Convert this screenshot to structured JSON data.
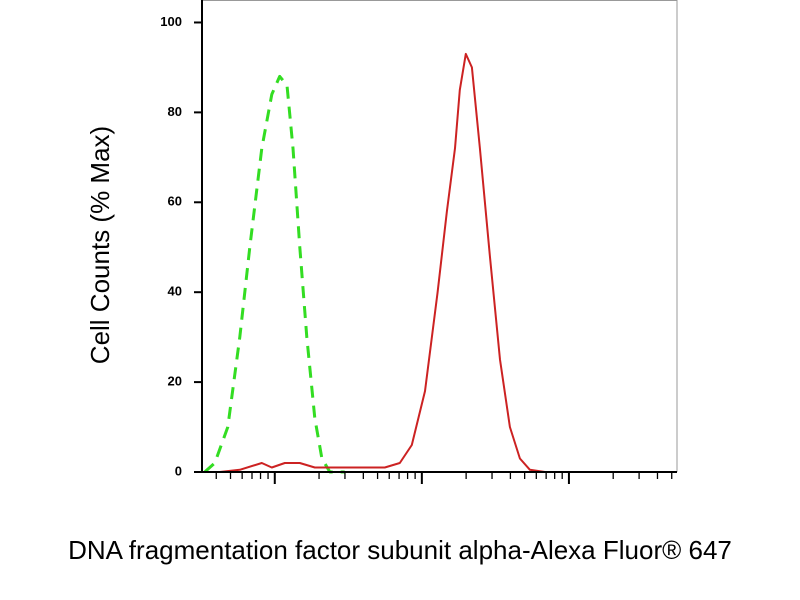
{
  "chart_data": {
    "type": "line",
    "x_label": "DNA fragmentation factor subunit alpha-Alexa Fluor® 647",
    "y_label": "Cell Counts (% Max)",
    "xscale": "log",
    "xlim": [
      3.2,
      5430
    ],
    "xticks": [
      4,
      5,
      6,
      7,
      8,
      9,
      10,
      20,
      30,
      40,
      50,
      60,
      70,
      80,
      90,
      100,
      200,
      300,
      400,
      500,
      600,
      700,
      800,
      900,
      1000,
      2000,
      3000,
      4000,
      5000
    ],
    "ylim": [
      0,
      105
    ],
    "yticks": [
      0,
      20,
      40,
      60,
      80,
      100
    ],
    "series": [
      {
        "color": "#33dd22",
        "dash": true,
        "x": [
          3.34,
          3.91,
          4.79,
          5.78,
          6.76,
          8.16,
          9.55,
          10.8,
          12.1,
          13.3,
          14.8,
          16.5,
          18.7,
          20.9,
          23.7,
          29.9
        ],
        "values": [
          0,
          2,
          10,
          30,
          50,
          72,
          84,
          88,
          86,
          72,
          50,
          30,
          12,
          3,
          0,
          0
        ]
      },
      {
        "color": "#cc2222",
        "dash": false,
        "x": [
          4.23,
          5.78,
          8.16,
          9.55,
          11.7,
          14.8,
          18.7,
          23.7,
          37.9,
          56.0,
          70.8,
          85.5,
          105,
          128,
          148,
          168,
          181,
          199,
          219,
          248,
          290,
          340,
          397,
          464,
          543,
          687,
          5430
        ],
        "values": [
          0,
          0.5,
          2,
          1,
          2,
          2,
          1,
          1,
          1,
          1,
          2,
          6,
          18,
          40,
          58,
          72,
          85,
          93,
          90,
          72,
          48,
          25,
          10,
          3,
          0.5,
          0,
          0
        ]
      }
    ]
  }
}
